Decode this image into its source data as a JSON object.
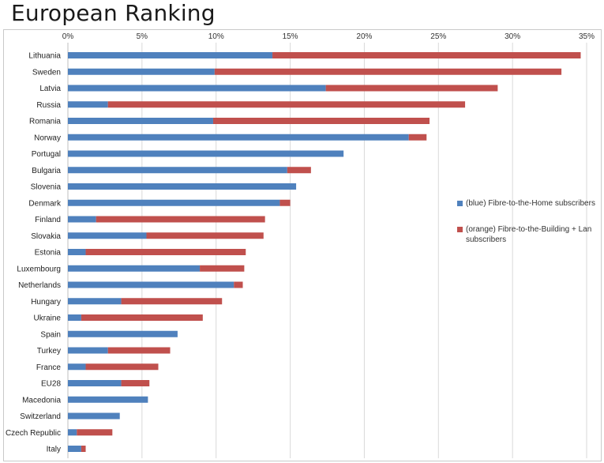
{
  "page": {
    "title": "European Ranking"
  },
  "colors": {
    "fttH": "#4f81bd",
    "fttB": "#c0504d",
    "grid": "#d9d9d9",
    "axis": "#bfbfbf"
  },
  "chart_data": {
    "type": "bar",
    "orientation": "horizontal",
    "stacked": true,
    "title": "European Ranking",
    "xlim": [
      0,
      35
    ],
    "x_ticks": [
      "0%",
      "5%",
      "10%",
      "15%",
      "20%",
      "25%",
      "30%",
      "35%"
    ],
    "x_tick_values": [
      0,
      5,
      10,
      15,
      20,
      25,
      30,
      35
    ],
    "x_axis_position": "top",
    "grid": true,
    "legend_position": "right",
    "categories": [
      "Lithuania",
      "Sweden",
      "Latvia",
      "Russia",
      "Romania",
      "Norway",
      "Portugal",
      "Bulgaria",
      "Slovenia",
      "Denmark",
      "Finland",
      "Slovakia",
      "Estonia",
      "Luxembourg",
      "Netherlands",
      "Hungary",
      "Ukraine",
      "Spain",
      "Turkey",
      "France",
      "EU28",
      "Macedonia",
      "Switzerland",
      "Czech Republic",
      "Italy"
    ],
    "series": [
      {
        "name": "(blue) Fibre-to-the-Home subscribers",
        "color": "#4f81bd",
        "values": [
          13.8,
          9.9,
          17.4,
          2.7,
          9.8,
          23.0,
          18.6,
          14.8,
          15.4,
          14.3,
          1.9,
          5.3,
          1.2,
          8.9,
          11.2,
          3.6,
          0.9,
          7.4,
          2.7,
          1.2,
          3.6,
          5.4,
          3.5,
          0.6,
          0.9
        ]
      },
      {
        "name": "(orange) Fibre-to-the-Building + Lan subscribers",
        "color": "#c0504d",
        "values": [
          20.8,
          23.4,
          11.6,
          24.1,
          14.6,
          1.2,
          0,
          1.6,
          0,
          0.7,
          11.4,
          7.9,
          10.8,
          3.0,
          0.6,
          6.8,
          8.2,
          0,
          4.2,
          4.9,
          1.9,
          0,
          0,
          2.4,
          0.3
        ]
      }
    ]
  }
}
